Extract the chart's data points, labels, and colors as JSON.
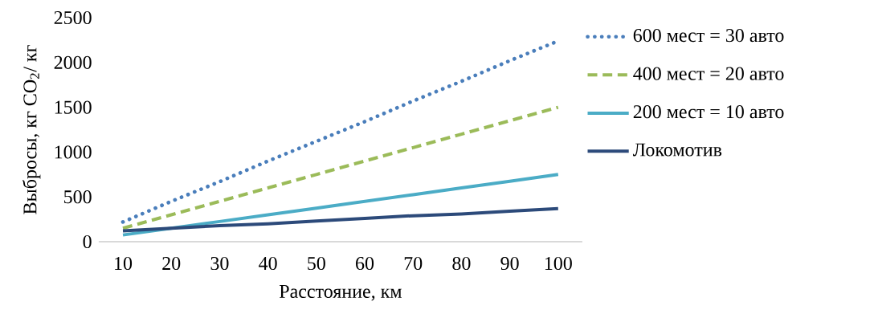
{
  "chart_data": {
    "type": "line",
    "xlabel": "Расстояние, км",
    "ylabel": "Выбросы, кг CO$_{2}$/ кг",
    "categories": [
      "10",
      "20",
      "30",
      "40",
      "50",
      "60",
      "70",
      "80",
      "90",
      "100"
    ],
    "series": [
      {
        "name": "600 мест = 30 авто",
        "color": "#4a7ebb",
        "line_style": "dotted",
        "values": [
          220,
          450,
          670,
          900,
          1120,
          1340,
          1570,
          1790,
          2020,
          2240
        ]
      },
      {
        "name": "400 мест = 20 авто",
        "color": "#9bbb59",
        "line_style": "dashed",
        "values": [
          150,
          300,
          450,
          600,
          750,
          900,
          1050,
          1200,
          1350,
          1500
        ]
      },
      {
        "name": "200 мест = 10 авто",
        "color": "#4bacc6",
        "line_style": "solid",
        "values": [
          75,
          150,
          225,
          300,
          375,
          450,
          525,
          600,
          675,
          750
        ]
      },
      {
        "name": "Локомотив",
        "color": "#2c4a7a",
        "line_style": "solid",
        "values": [
          120,
          150,
          180,
          200,
          230,
          260,
          290,
          310,
          340,
          370
        ]
      }
    ],
    "ylim": [
      0,
      2500
    ],
    "yticks": [
      0,
      500,
      1000,
      1500,
      2000,
      2500
    ],
    "legend": "right",
    "grid": false
  }
}
